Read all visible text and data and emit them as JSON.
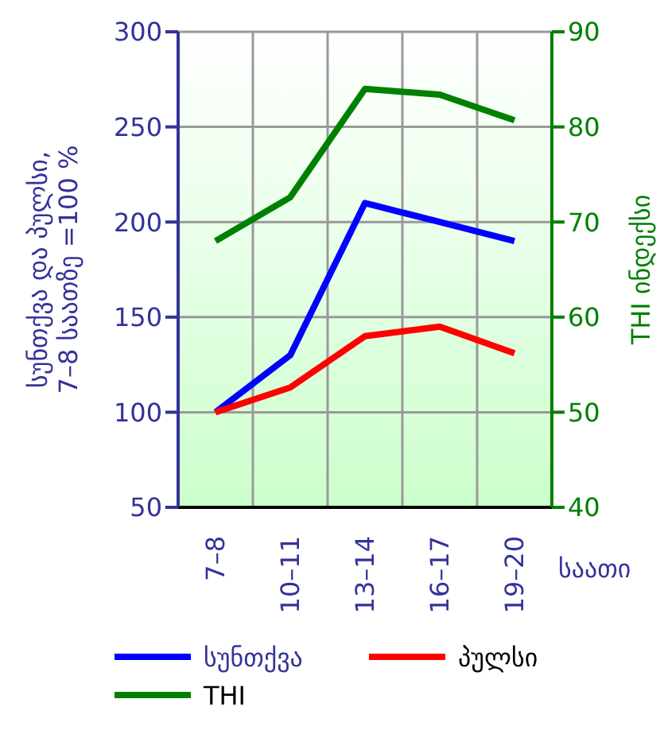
{
  "chart_data": {
    "type": "line",
    "ylabel": "სუნთქვა და პულსი,\n7–8 საათზე =100 %",
    "y2label": "THI ინდექსი",
    "xlabel": "საათი",
    "categories": [
      "7–8",
      "10–11",
      "13–14",
      "16–17",
      "19–20"
    ],
    "series": [
      {
        "name": "სუნთქვა",
        "color": "#0000ff",
        "values": [
          100,
          130,
          210,
          200,
          190
        ]
      },
      {
        "name": "პულსი",
        "color": "#ff0000",
        "values": [
          100,
          113,
          140,
          145,
          131
        ]
      },
      {
        "name": "THI",
        "color": "#008000",
        "values": [
          68,
          72.6,
          84,
          83.4,
          80.7
        ],
        "axis": "y2"
      }
    ],
    "ylim": [
      50,
      300
    ],
    "yticks": [
      50,
      100,
      150,
      200,
      250,
      300
    ],
    "y2lim": [
      40,
      90
    ],
    "y2ticks": [
      40,
      50,
      60,
      70,
      80,
      90
    ],
    "grid": true,
    "legend": "bottom left",
    "marker": "none",
    "line_style": "solid"
  }
}
